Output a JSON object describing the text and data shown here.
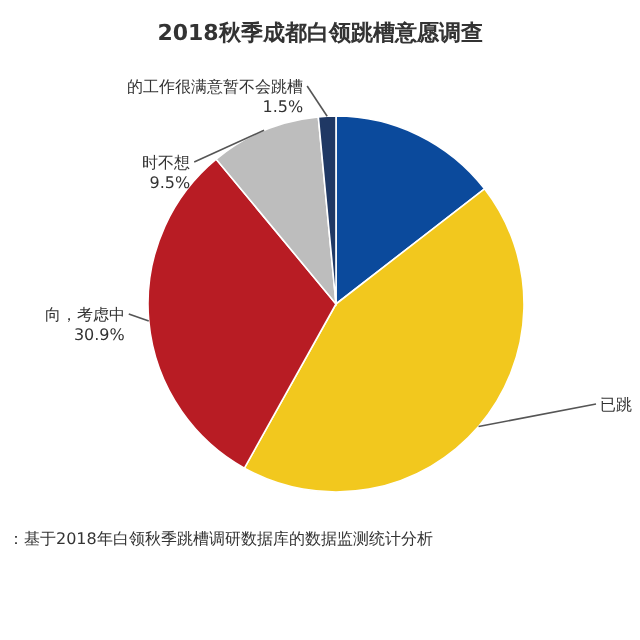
{
  "chart_data": {
    "type": "pie",
    "title": "2018秋季成都白领跳槽意愿调查",
    "categories": [
      null,
      "已跳",
      "向，考虑中",
      "时不想",
      "的工作很满意暂不会跳槽"
    ],
    "values": [
      14.5,
      43.6,
      30.9,
      9.5,
      1.5
    ],
    "colors": [
      "#0b4a9c",
      "#f2c81e",
      "#b81c24",
      "#bdbdbd",
      "#1f3864"
    ],
    "value_labels": [
      null,
      null,
      "30.9%",
      "9.5%",
      "1.5%"
    ],
    "annotations": [
      "：基于2018年白领秋季跳槽调研数据库的数据监测统计分析"
    ]
  }
}
